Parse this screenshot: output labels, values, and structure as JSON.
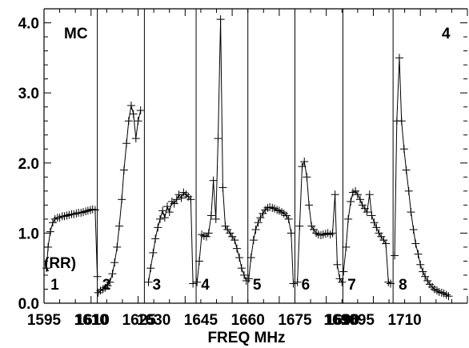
{
  "chart_data": {
    "type": "line",
    "xlabel": "FREQ MHz",
    "xlim": [
      1595,
      1730
    ],
    "ylim": [
      0,
      4.2
    ],
    "y_ticks": [
      "0.0",
      "1.0",
      "2.0",
      "3.0",
      "4.0"
    ],
    "y_tick_values": [
      0,
      1,
      2,
      3,
      4
    ],
    "x_tick_labels": [
      "1595",
      "1610",
      "1610",
      "1625",
      "1630",
      "1645",
      "1660",
      "1675",
      "1690",
      "1690",
      "1695",
      "1710"
    ],
    "x_tick_values": [
      1595,
      1610,
      1610.5,
      1625.3,
      1630,
      1645,
      1660,
      1675,
      1689.6,
      1690.2,
      1695,
      1710
    ],
    "annotations": {
      "top_left": "MC",
      "top_right": "4",
      "y_indicator": "(RR)"
    },
    "panels": [
      {
        "label": "1",
        "x": [
          1595.8,
          1596.3,
          1597.0,
          1597.8,
          1598.5,
          1599.3,
          1600.0,
          1600.8,
          1601.5,
          1602.3,
          1603.0,
          1603.8,
          1604.5,
          1605.3,
          1606.0,
          1606.8,
          1607.5,
          1608.3,
          1609.0,
          1609.8,
          1610.5,
          1611.3,
          1612.0
        ],
        "y": [
          0.5,
          0.8,
          1.02,
          1.15,
          1.2,
          1.22,
          1.22,
          1.24,
          1.24,
          1.25,
          1.26,
          1.27,
          1.27,
          1.28,
          1.29,
          1.29,
          1.3,
          1.31,
          1.32,
          1.33,
          1.34,
          1.33,
          0.38
        ]
      },
      {
        "label": "2",
        "x": [
          1612.3,
          1613.0,
          1613.8,
          1614.5,
          1615.3,
          1616.0,
          1616.8,
          1617.5,
          1618.3,
          1619.0,
          1619.8,
          1620.5,
          1621.3,
          1622.0,
          1622.8,
          1623.5,
          1624.3,
          1625.0,
          1625.8
        ],
        "y": [
          0.15,
          0.18,
          0.2,
          0.22,
          0.25,
          0.3,
          0.42,
          0.58,
          0.8,
          1.1,
          1.48,
          1.9,
          2.28,
          2.6,
          2.82,
          2.7,
          2.35,
          2.6,
          2.75
        ]
      },
      {
        "label": "3",
        "x": [
          1628.3,
          1629.0,
          1629.8,
          1630.5,
          1631.3,
          1632.0,
          1632.8,
          1633.5,
          1634.3,
          1635.0,
          1635.8,
          1636.5,
          1637.3,
          1638.0,
          1638.8,
          1639.5,
          1640.3,
          1641.0,
          1641.8,
          1642.5
        ],
        "y": [
          0.3,
          0.5,
          0.72,
          0.92,
          1.08,
          1.2,
          1.32,
          1.22,
          1.38,
          1.3,
          1.45,
          1.42,
          1.48,
          1.55,
          1.5,
          1.58,
          1.55,
          1.52,
          1.48,
          0.28
        ]
      },
      {
        "label": "4",
        "x": [
          1643.8,
          1644.5,
          1645.3,
          1646.0,
          1646.8,
          1647.5,
          1648.3,
          1649.0,
          1649.8,
          1650.5,
          1651.3,
          1652.0,
          1652.8,
          1653.5,
          1654.3,
          1655.0,
          1655.8,
          1656.5,
          1657.3,
          1658.0,
          1658.8,
          1659.5
        ],
        "y": [
          0.3,
          0.6,
          0.98,
          0.96,
          0.95,
          1.0,
          1.25,
          1.75,
          1.2,
          2.35,
          4.05,
          1.65,
          1.1,
          1.05,
          1.0,
          0.95,
          0.9,
          0.78,
          0.65,
          0.5,
          0.4,
          0.32
        ]
      },
      {
        "label": "5",
        "x": [
          1660.3,
          1661.0,
          1661.8,
          1662.5,
          1663.3,
          1664.0,
          1664.8,
          1665.5,
          1666.3,
          1667.0,
          1667.8,
          1668.5,
          1669.3,
          1670.0,
          1670.8,
          1671.5,
          1672.3,
          1673.0,
          1673.8,
          1674.5
        ],
        "y": [
          0.35,
          0.65,
          0.9,
          1.05,
          1.15,
          1.22,
          1.28,
          1.33,
          1.36,
          1.37,
          1.36,
          1.35,
          1.33,
          1.32,
          1.3,
          1.28,
          1.25,
          1.2,
          1.0,
          0.28
        ]
      },
      {
        "label": "6",
        "x": [
          1675.8,
          1676.5,
          1677.3,
          1678.0,
          1678.8,
          1679.5,
          1680.3,
          1681.0,
          1681.8,
          1682.5,
          1683.3,
          1684.0,
          1684.8,
          1685.5,
          1686.3,
          1687.0,
          1687.8,
          1688.5,
          1689.3,
          1690.0
        ],
        "y": [
          0.3,
          1.1,
          1.95,
          2.02,
          1.8,
          1.4,
          1.1,
          1.05,
          1.0,
          0.98,
          0.97,
          0.98,
          0.99,
          1.0,
          0.98,
          1.0,
          1.55,
          0.55,
          0.35,
          0.3
        ]
      },
      {
        "label": "7",
        "x": [
          1690.5,
          1691.3,
          1692.0,
          1692.8,
          1693.5,
          1694.3,
          1695.0,
          1695.8,
          1696.5,
          1697.3,
          1698.0,
          1698.8,
          1699.5,
          1700.3,
          1701.0,
          1701.8,
          1702.5,
          1703.3,
          1704.0,
          1704.8,
          1705.5
        ],
        "y": [
          0.45,
          0.8,
          1.2,
          1.45,
          1.58,
          1.6,
          1.55,
          1.48,
          1.4,
          1.35,
          1.3,
          1.55,
          1.25,
          1.15,
          1.08,
          1.0,
          0.95,
          0.9,
          0.85,
          0.3,
          0.28
        ]
      },
      {
        "label": "8",
        "x": [
          1706.8,
          1707.5,
          1708.3,
          1709.0,
          1709.8,
          1710.5,
          1711.3,
          1712.0,
          1712.8,
          1713.5,
          1714.3,
          1715.0,
          1715.8,
          1716.5,
          1717.3,
          1718.0,
          1718.8,
          1719.5,
          1720.3,
          1721.0,
          1721.8,
          1722.5,
          1723.3,
          1724.0
        ],
        "y": [
          0.68,
          2.6,
          3.5,
          2.6,
          2.2,
          1.9,
          1.6,
          1.3,
          1.05,
          0.85,
          0.7,
          0.55,
          0.45,
          0.38,
          0.32,
          0.27,
          0.23,
          0.2,
          0.18,
          0.16,
          0.15,
          0.14,
          0.12,
          0.1
        ]
      }
    ],
    "dividers": [
      1612,
      1627,
      1643.5,
      1660,
      1675,
      1690.3,
      1706.3
    ],
    "grid": false,
    "legend": "none"
  }
}
